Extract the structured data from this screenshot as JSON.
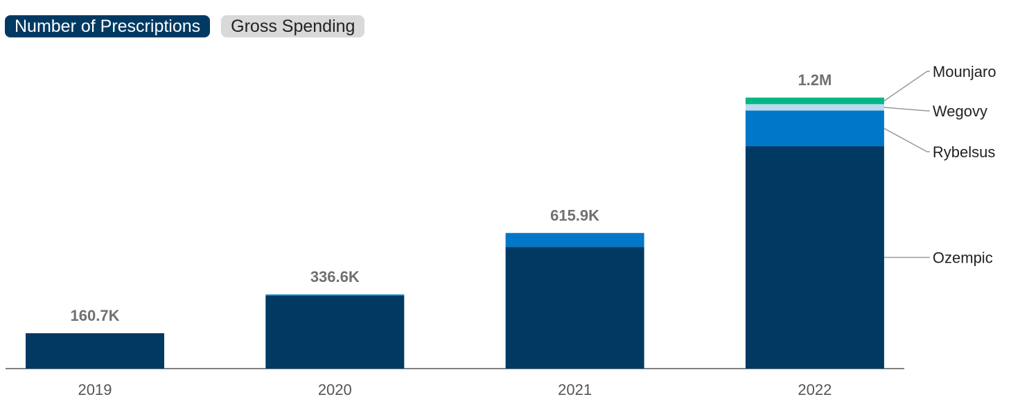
{
  "tabs": [
    {
      "label": "Number of Prescriptions",
      "active": true
    },
    {
      "label": "Gross Spending",
      "active": false
    }
  ],
  "chart_data": {
    "type": "bar",
    "stacked": true,
    "categories": [
      "2019",
      "2020",
      "2021",
      "2022"
    ],
    "totals_labels": [
      "160.7K",
      "336.6K",
      "615.9K",
      "1.2M"
    ],
    "series": [
      {
        "name": "Ozempic",
        "color": "#003a63",
        "values": [
          160700,
          331000,
          553000,
          1010000
        ]
      },
      {
        "name": "Rybelsus",
        "color": "#0077c8",
        "values": [
          0,
          5600,
          62900,
          162000
        ]
      },
      {
        "name": "Wegovy",
        "color": "#bcd9ee",
        "values": [
          0,
          0,
          0,
          29000
        ]
      },
      {
        "name": "Mounjaro",
        "color": "#00b886",
        "values": [
          0,
          0,
          0,
          30000
        ]
      }
    ],
    "ylim": [
      0,
      1350000
    ],
    "gridlines": false,
    "legend": "right"
  }
}
